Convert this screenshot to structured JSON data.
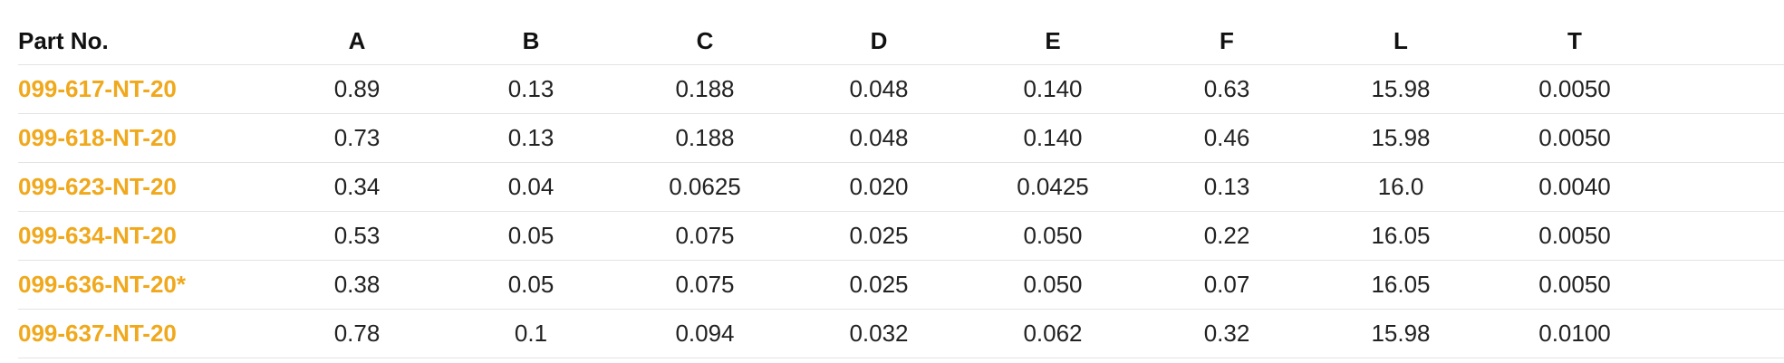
{
  "colors": {
    "part_link": "#f0a81c",
    "row_border": "#e3e3e3",
    "text": "#222222"
  },
  "table": {
    "headers": [
      "Part No.",
      "A",
      "B",
      "C",
      "D",
      "E",
      "F",
      "L",
      "T"
    ],
    "rows": [
      {
        "part": "099-617-NT-20",
        "values": [
          "0.89",
          "0.13",
          "0.188",
          "0.048",
          "0.140",
          "0.63",
          "15.98",
          "0.0050"
        ]
      },
      {
        "part": "099-618-NT-20",
        "values": [
          "0.73",
          "0.13",
          "0.188",
          "0.048",
          "0.140",
          "0.46",
          "15.98",
          "0.0050"
        ]
      },
      {
        "part": "099-623-NT-20",
        "values": [
          "0.34",
          "0.04",
          "0.0625",
          "0.020",
          "0.0425",
          "0.13",
          "16.0",
          "0.0040"
        ]
      },
      {
        "part": "099-634-NT-20",
        "values": [
          "0.53",
          "0.05",
          "0.075",
          "0.025",
          "0.050",
          "0.22",
          "16.05",
          "0.0050"
        ]
      },
      {
        "part": "099-636-NT-20*",
        "values": [
          "0.38",
          "0.05",
          "0.075",
          "0.025",
          "0.050",
          "0.07",
          "16.05",
          "0.0050"
        ]
      },
      {
        "part": "099-637-NT-20",
        "values": [
          "0.78",
          "0.1",
          "0.094",
          "0.032",
          "0.062",
          "0.32",
          "15.98",
          "0.0100"
        ]
      }
    ]
  }
}
